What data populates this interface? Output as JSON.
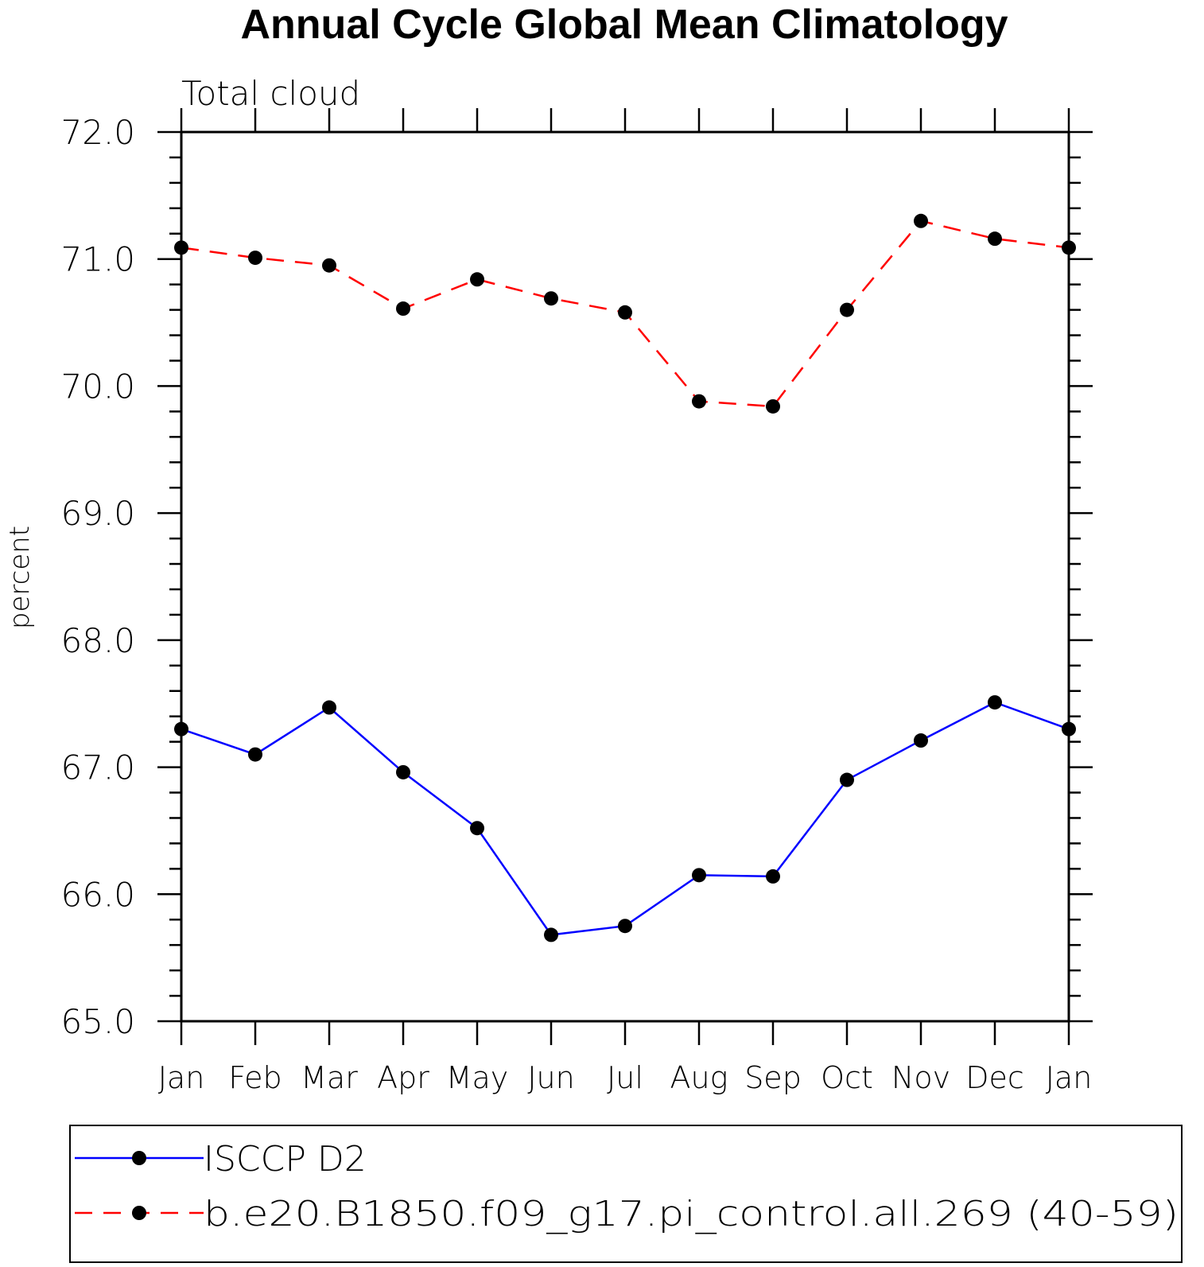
{
  "chart_data": {
    "type": "line",
    "title": "Annual Cycle Global Mean Climatology",
    "subtitle": "Total cloud",
    "ylabel": "percent",
    "xlabel": "",
    "categories": [
      "Jan",
      "Feb",
      "Mar",
      "Apr",
      "May",
      "Jun",
      "Jul",
      "Aug",
      "Sep",
      "Oct",
      "Nov",
      "Dec",
      "Jan"
    ],
    "ylim": [
      65.0,
      72.0
    ],
    "yticks": [
      "65.0",
      "66.0",
      "67.0",
      "68.0",
      "69.0",
      "70.0",
      "71.0",
      "72.0"
    ],
    "grid": false,
    "legend_position": "bottom",
    "series": [
      {
        "name": "ISCCP D2",
        "color": "#0000ff",
        "dash": "solid",
        "marker": "filled-circle",
        "values": [
          67.3,
          67.1,
          67.47,
          66.96,
          66.52,
          65.68,
          65.75,
          66.15,
          66.14,
          66.9,
          67.21,
          67.51,
          67.3
        ]
      },
      {
        "name": "b.e20.B1850.f09_g17.pi_control.all.269 (40-59)",
        "color": "#ff0000",
        "dash": "dashed",
        "marker": "filled-circle",
        "values": [
          71.09,
          71.01,
          70.95,
          70.61,
          70.84,
          70.69,
          70.58,
          69.88,
          69.84,
          70.6,
          71.3,
          71.16,
          71.09
        ]
      }
    ]
  }
}
